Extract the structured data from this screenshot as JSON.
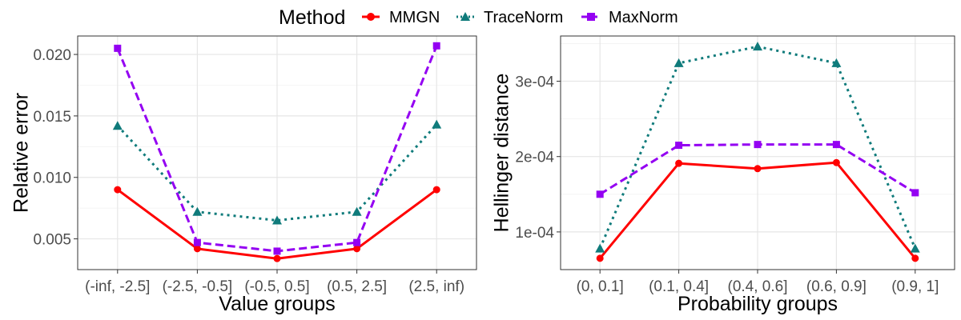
{
  "legend": {
    "title": "Method",
    "entries": [
      {
        "name": "MMGN",
        "color": "#ff0000",
        "marker": "circle",
        "dash": "solid"
      },
      {
        "name": "TraceNorm",
        "color": "#0f7b7b",
        "marker": "triangle",
        "dash": "dotted"
      },
      {
        "name": "MaxNorm",
        "color": "#9400f2",
        "marker": "square",
        "dash": "dashed"
      }
    ]
  },
  "chart_data": [
    {
      "type": "line",
      "xlabel": "Value groups",
      "ylabel": "Relative error",
      "categories": [
        "(-inf, -2.5]",
        "(-2.5, -0.5]",
        "(-0.5, 0.5]",
        "(0.5, 2.5]",
        "(2.5, inf)"
      ],
      "ylim": [
        0.0025,
        0.0215
      ],
      "yticks": [
        0.005,
        0.01,
        0.015,
        0.02
      ],
      "ytick_labels": [
        "0.005",
        "0.010",
        "0.015",
        "0.020"
      ],
      "grid": true,
      "series": [
        {
          "name": "MMGN",
          "values": [
            0.009,
            0.0042,
            0.0034,
            0.0042,
            0.009
          ]
        },
        {
          "name": "TraceNorm",
          "values": [
            0.0142,
            0.0072,
            0.0065,
            0.0072,
            0.0143
          ]
        },
        {
          "name": "MaxNorm",
          "values": [
            0.0205,
            0.0047,
            0.004,
            0.0047,
            0.0207
          ]
        }
      ]
    },
    {
      "type": "line",
      "xlabel": "Probability groups",
      "ylabel": "Hellinger distance",
      "categories": [
        "(0, 0.1]",
        "(0.1, 0.4]",
        "(0.4, 0.6]",
        "(0.6, 0.9]",
        "(0.9, 1]"
      ],
      "ylim": [
        5e-05,
        0.00036
      ],
      "yticks": [
        0.0001,
        0.0002,
        0.0003
      ],
      "ytick_labels": [
        "1e-04",
        "2e-04",
        "3e-04"
      ],
      "grid": true,
      "series": [
        {
          "name": "MMGN",
          "values": [
            6.5e-05,
            0.000191,
            0.000184,
            0.000192,
            6.5e-05
          ]
        },
        {
          "name": "TraceNorm",
          "values": [
            7.8e-05,
            0.000324,
            0.000346,
            0.000324,
            7.8e-05
          ]
        },
        {
          "name": "MaxNorm",
          "values": [
            0.00015,
            0.000215,
            0.000216,
            0.000216,
            0.000152
          ]
        }
      ]
    }
  ]
}
